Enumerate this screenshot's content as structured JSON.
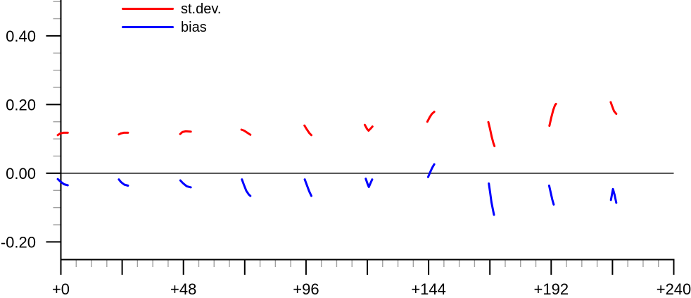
{
  "chart_data": {
    "type": "line",
    "title": "",
    "axes": {
      "x": {
        "lim": [
          0,
          240
        ],
        "major_tick_step": 24,
        "minor_tick_step": 6,
        "tick_labels": [
          {
            "t": 0,
            "label": "+0"
          },
          {
            "t": 48,
            "label": "+48"
          },
          {
            "t": 96,
            "label": "+96"
          },
          {
            "t": 144,
            "label": "+144"
          },
          {
            "t": 192,
            "label": "+192"
          },
          {
            "t": 240,
            "label": "+240"
          }
        ]
      },
      "y": {
        "lim": [
          -0.2515,
          0.5045
        ],
        "major_tick_step": 0.2,
        "minor_tick_step": 0.05,
        "tick_labels": [
          {
            "v": 0.4,
            "label": "0.40"
          },
          {
            "v": 0.2,
            "label": "0.20"
          },
          {
            "v": 0.0,
            "label": "0.00"
          },
          {
            "v": -0.2,
            "label": "-0.20"
          }
        ]
      },
      "zero_line": true,
      "grid": false
    },
    "legend": [
      {
        "label": "st.dev.",
        "color": "#ff0000"
      },
      {
        "label": "bias",
        "color": "#0000ff"
      }
    ],
    "series": [
      {
        "name": "st.dev.",
        "color": "#ff0000",
        "segments": [
          [
            [
              -1.2,
              0.111
            ],
            [
              -0.2,
              0.116
            ],
            [
              1.0,
              0.118
            ],
            [
              2.7,
              0.118
            ]
          ],
          [
            [
              22.7,
              0.113
            ],
            [
              23.5,
              0.116
            ],
            [
              24.6,
              0.118
            ],
            [
              26.3,
              0.118
            ]
          ],
          [
            [
              46.7,
              0.114
            ],
            [
              47.6,
              0.12
            ],
            [
              48.9,
              0.122
            ],
            [
              50.9,
              0.121
            ]
          ],
          [
            [
              70.7,
              0.127
            ],
            [
              71.8,
              0.124
            ],
            [
              73.0,
              0.118
            ],
            [
              74.2,
              0.112
            ]
          ],
          [
            [
              95.4,
              0.139
            ],
            [
              96.2,
              0.129
            ],
            [
              97.3,
              0.117
            ],
            [
              98.1,
              0.111
            ]
          ],
          [
            [
              119.0,
              0.141
            ],
            [
              119.9,
              0.129
            ],
            [
              120.5,
              0.124
            ],
            [
              121.3,
              0.13
            ],
            [
              122.0,
              0.136
            ]
          ],
          [
            [
              143.5,
              0.15
            ],
            [
              144.4,
              0.163
            ],
            [
              145.3,
              0.173
            ],
            [
              146.2,
              0.179
            ]
          ],
          [
            [
              167.4,
              0.149
            ],
            [
              168.0,
              0.131
            ],
            [
              168.7,
              0.107
            ],
            [
              169.4,
              0.087
            ],
            [
              169.8,
              0.079
            ]
          ],
          [
            [
              191.3,
              0.138
            ],
            [
              192.0,
              0.161
            ],
            [
              192.8,
              0.184
            ],
            [
              193.5,
              0.198
            ],
            [
              193.9,
              0.202
            ]
          ],
          [
            [
              215.3,
              0.207
            ],
            [
              215.9,
              0.195
            ],
            [
              216.6,
              0.181
            ],
            [
              217.5,
              0.173
            ]
          ]
        ]
      },
      {
        "name": "bias",
        "color": "#0000ff",
        "segments": [
          [
            [
              -1.2,
              -0.017
            ],
            [
              -0.2,
              -0.024
            ],
            [
              1.2,
              -0.032
            ],
            [
              2.7,
              -0.035
            ]
          ],
          [
            [
              22.7,
              -0.018
            ],
            [
              23.6,
              -0.026
            ],
            [
              24.8,
              -0.033
            ],
            [
              26.3,
              -0.036
            ]
          ],
          [
            [
              46.8,
              -0.021
            ],
            [
              47.8,
              -0.029
            ],
            [
              49.3,
              -0.038
            ],
            [
              50.9,
              -0.041
            ]
          ],
          [
            [
              70.9,
              -0.018
            ],
            [
              71.6,
              -0.032
            ],
            [
              72.6,
              -0.051
            ],
            [
              73.6,
              -0.062
            ],
            [
              74.2,
              -0.066
            ]
          ],
          [
            [
              95.5,
              -0.018
            ],
            [
              96.3,
              -0.034
            ],
            [
              97.2,
              -0.052
            ],
            [
              98.1,
              -0.066
            ]
          ],
          [
            [
              119.4,
              -0.016
            ],
            [
              120.2,
              -0.033
            ],
            [
              120.6,
              -0.04
            ],
            [
              121.4,
              -0.026
            ],
            [
              121.9,
              -0.018
            ]
          ],
          [
            [
              143.8,
              -0.011
            ],
            [
              144.5,
              0.001
            ],
            [
              145.4,
              0.016
            ],
            [
              146.2,
              0.026
            ]
          ],
          [
            [
              167.6,
              -0.03
            ],
            [
              168.1,
              -0.057
            ],
            [
              168.6,
              -0.084
            ],
            [
              169.2,
              -0.107
            ],
            [
              169.6,
              -0.121
            ]
          ],
          [
            [
              191.2,
              -0.036
            ],
            [
              191.8,
              -0.056
            ],
            [
              192.4,
              -0.076
            ],
            [
              193.0,
              -0.091
            ]
          ],
          [
            [
              215.4,
              -0.078
            ],
            [
              215.9,
              -0.058
            ],
            [
              216.2,
              -0.046
            ],
            [
              216.8,
              -0.062
            ],
            [
              217.5,
              -0.086
            ]
          ]
        ]
      }
    ]
  },
  "colors": {
    "axis": "#000000",
    "minor_tick": "#a0a0a0",
    "text": "#000000",
    "background": "#ffffff"
  }
}
